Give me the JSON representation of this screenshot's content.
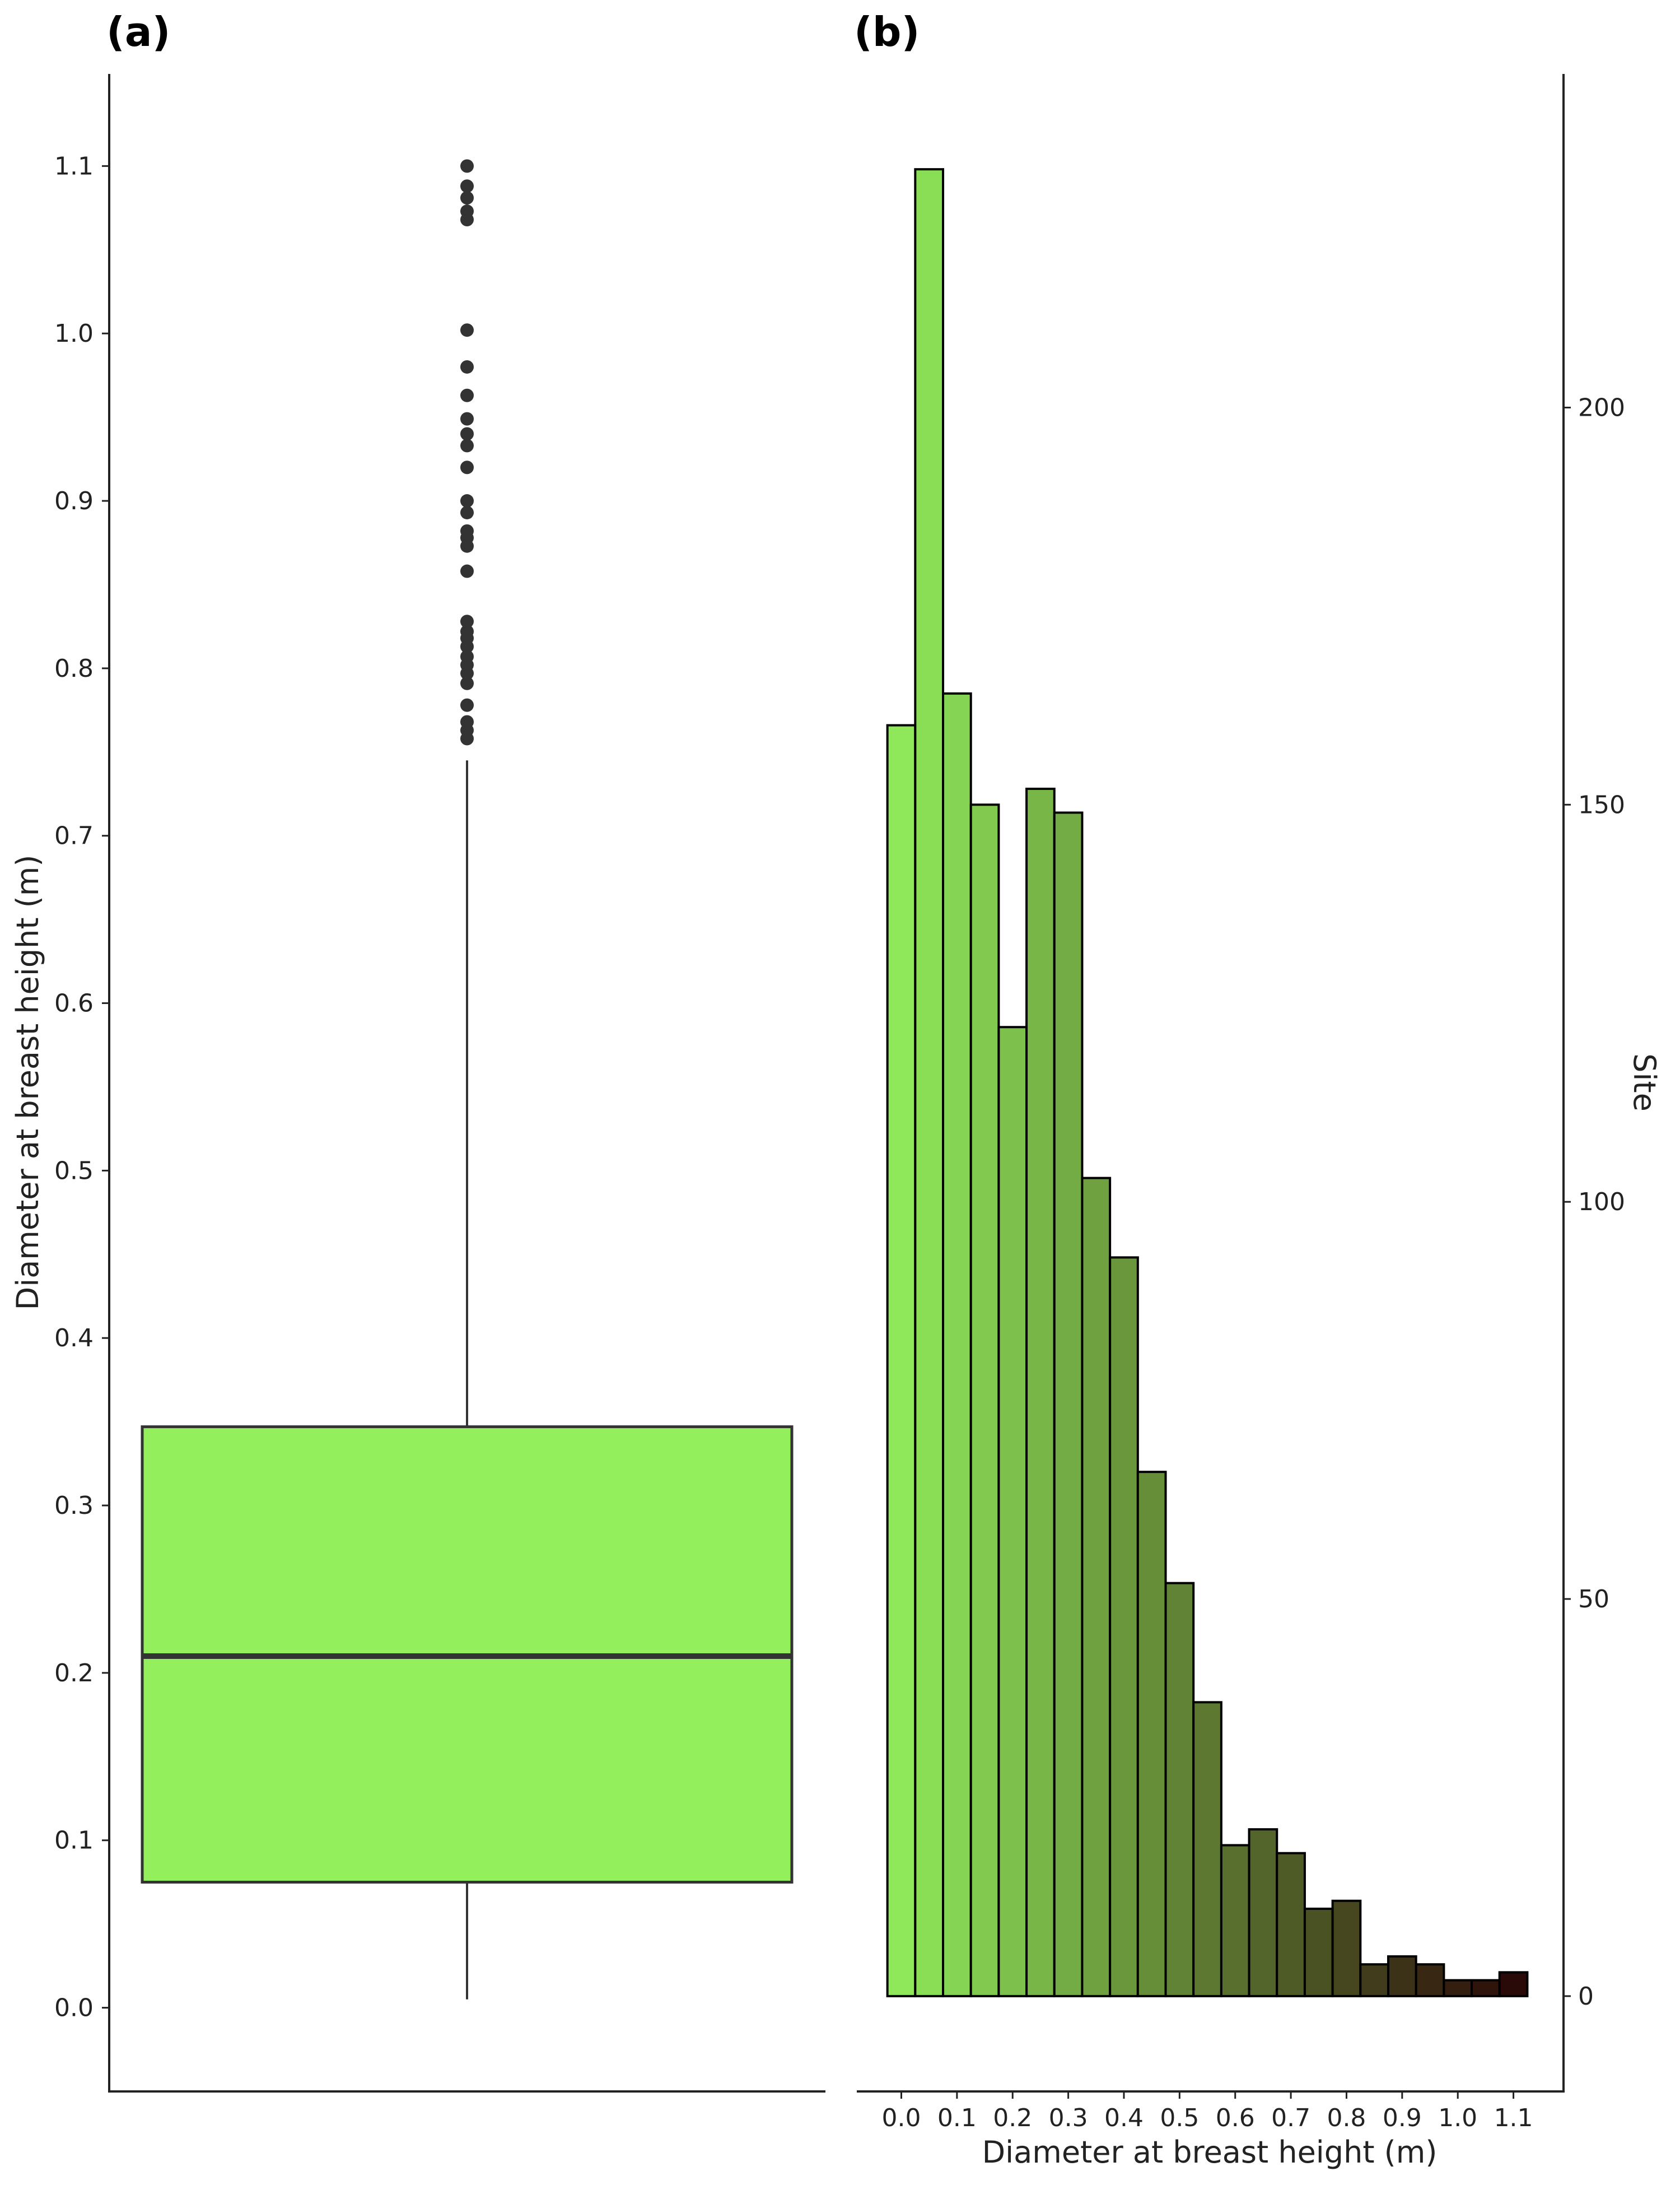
{
  "chart_data": [
    {
      "type": "box",
      "panel_label": "(a)",
      "ylabel": "Diameter at breast height (m)",
      "ylim": [
        -0.05,
        1.155
      ],
      "y_ticks": [
        "0.0",
        "0.1",
        "0.2",
        "0.3",
        "0.4",
        "0.5",
        "0.6",
        "0.7",
        "0.8",
        "0.9",
        "1.0",
        "1.1"
      ],
      "box": {
        "whisker_low": 0.005,
        "q1": 0.075,
        "median": 0.21,
        "q3": 0.347,
        "whisker_high": 0.745
      },
      "outliers": [
        0.758,
        0.763,
        0.768,
        0.778,
        0.791,
        0.797,
        0.802,
        0.807,
        0.813,
        0.818,
        0.822,
        0.828,
        0.858,
        0.873,
        0.878,
        0.882,
        0.893,
        0.9,
        0.92,
        0.933,
        0.94,
        0.949,
        0.963,
        0.98,
        1.002,
        1.068,
        1.073,
        1.081,
        1.088,
        1.1
      ],
      "colors": {
        "box_fill": "#94ef5c",
        "box_stroke": "#333333",
        "point": "#333333"
      },
      "grid": false
    },
    {
      "type": "bar",
      "panel_label": "(b)",
      "xlabel": "Diameter at breast height (m)",
      "ylabel": "Site",
      "y_axis_side": "right",
      "x_ticks": [
        "0.0",
        "0.1",
        "0.2",
        "0.3",
        "0.4",
        "0.5",
        "0.6",
        "0.7",
        "0.8",
        "0.9",
        "1.0",
        "1.1"
      ],
      "x_tick_values": [
        0.0,
        0.1,
        0.2,
        0.3,
        0.4,
        0.5,
        0.6,
        0.7,
        0.8,
        0.9,
        1.0,
        1.1
      ],
      "y_ticks": [
        "0",
        "50",
        "100",
        "150",
        "200"
      ],
      "y_tick_values": [
        0,
        50,
        100,
        150,
        200
      ],
      "xlim": [
        -0.08,
        1.19
      ],
      "ylim": [
        -12,
        242
      ],
      "bin_width": 0.05,
      "bin_starts": [
        -0.025,
        0.025,
        0.075,
        0.125,
        0.175,
        0.225,
        0.275,
        0.325,
        0.375,
        0.425,
        0.475,
        0.525,
        0.575,
        0.625,
        0.675,
        0.725,
        0.775,
        0.825,
        0.875,
        0.925,
        0.975,
        1.025,
        1.075
      ],
      "values": [
        160,
        230,
        164,
        150,
        122,
        152,
        149,
        103,
        93,
        66,
        52,
        37,
        19,
        21,
        18,
        11,
        12,
        4,
        5,
        4,
        2,
        2,
        3
      ],
      "colors": {
        "gradient_start": "#8fe85a",
        "gradient_end": "#2a0a08",
        "bar_stroke": "#000000"
      },
      "grid": false
    }
  ]
}
